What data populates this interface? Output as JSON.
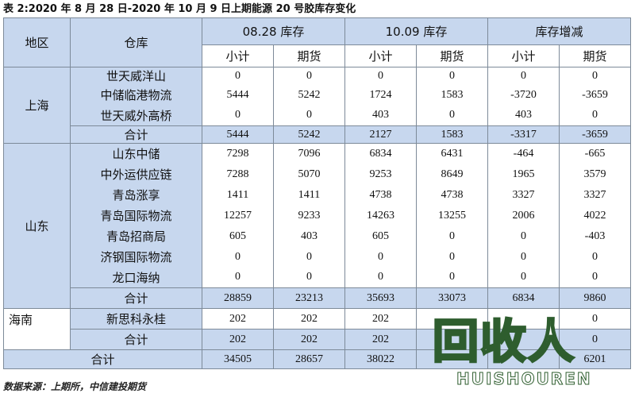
{
  "title": "表 2:2020 年 8 月 28 日-2020 年 10 月 9 日上期能源 20 号胶库存变化",
  "headers": {
    "region": "地区",
    "warehouse": "仓库",
    "group1": "08.28 库存",
    "group2": "10.09 库存",
    "group3": "库存增减",
    "subtotal": "小计",
    "futures": "期货"
  },
  "regions": {
    "shanghai": "上海",
    "shandong": "山东",
    "hainan": "海南"
  },
  "total_label": "合计",
  "rows": [
    {
      "name": "世天威洋山",
      "v": [
        "0",
        "0",
        "0",
        "0",
        "0",
        "0"
      ]
    },
    {
      "name": "中储临港物流",
      "v": [
        "5444",
        "5242",
        "1724",
        "1583",
        "-3720",
        "-3659"
      ]
    },
    {
      "name": "世天威外高桥",
      "v": [
        "0",
        "0",
        "403",
        "0",
        "403",
        "0"
      ]
    },
    {
      "name": "合计",
      "v": [
        "5444",
        "5242",
        "2127",
        "1583",
        "-3317",
        "-3659"
      ]
    },
    {
      "name": "山东中储",
      "v": [
        "7298",
        "7096",
        "6834",
        "6431",
        "-464",
        "-665"
      ]
    },
    {
      "name": "中外运供应链",
      "v": [
        "7288",
        "5070",
        "9253",
        "8649",
        "1965",
        "3579"
      ]
    },
    {
      "name": "青岛涨享",
      "v": [
        "1411",
        "1411",
        "4738",
        "4738",
        "3327",
        "3327"
      ]
    },
    {
      "name": "青岛国际物流",
      "v": [
        "12257",
        "9233",
        "14263",
        "13255",
        "2006",
        "4022"
      ]
    },
    {
      "name": "青岛招商局",
      "v": [
        "605",
        "403",
        "605",
        "0",
        "0",
        "-403"
      ]
    },
    {
      "name": "济钢国际物流",
      "v": [
        "0",
        "0",
        "0",
        "0",
        "0",
        "0"
      ]
    },
    {
      "name": "龙口海纳",
      "v": [
        "0",
        "0",
        "0",
        "0",
        "0",
        "0"
      ]
    },
    {
      "name": "合计",
      "v": [
        "28859",
        "23213",
        "35693",
        "33073",
        "6834",
        "9860"
      ]
    },
    {
      "name": "新思科永桂",
      "v": [
        "202",
        "202",
        "202",
        "",
        "",
        "0"
      ]
    },
    {
      "name": "合计",
      "v": [
        "202",
        "202",
        "202",
        "",
        "",
        "0"
      ]
    },
    {
      "name": "合计",
      "v": [
        "34505",
        "28657",
        "38022",
        "",
        "",
        "6201"
      ]
    }
  ],
  "source": "数据来源：上期所，中信建投期货",
  "watermark": {
    "main": "回收人",
    "sub": "HUISHOUREN"
  }
}
